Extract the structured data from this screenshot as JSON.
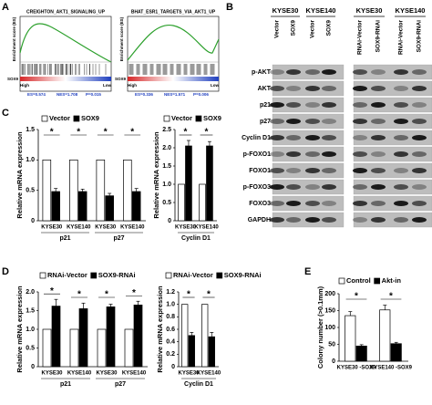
{
  "panel_labels": [
    "A",
    "B",
    "C",
    "D",
    "E"
  ],
  "gsea": [
    {
      "title": "CREIGHTON_AKT1_SIGNALING_UP",
      "ylabel": "Enrichment score (ES)",
      "gene": "SOX9",
      "high": "High",
      "low": "Low",
      "stats": [
        "ES=0.574",
        "NES=1.708",
        "P=0.015"
      ]
    },
    {
      "title": "BHAT_ESR1_TARGETS_VIA_AKT1_UP",
      "ylabel": "Enrichment score (ES)",
      "gene": "SOX9",
      "high": "High",
      "low": "Low",
      "stats": [
        "ES=0.336",
        "NES=1.571",
        "P=0.006"
      ]
    }
  ],
  "blot": {
    "left_groups": [
      {
        "name": "KYSE30",
        "lanes": [
          "Vector",
          "SOX9"
        ]
      },
      {
        "name": "KYSE140",
        "lanes": [
          "Vector",
          "SOX9"
        ]
      }
    ],
    "right_groups": [
      {
        "name": "KYSE30",
        "lanes": [
          "RNAi-Vector",
          "SOX9-RNAi"
        ]
      },
      {
        "name": "KYSE140",
        "lanes": [
          "RNAi-Vector",
          "SOX9-RNAi"
        ]
      }
    ],
    "rows": [
      "p-AKT",
      "AKT",
      "p21",
      "p27",
      "Cyclin D1",
      "p-FOXO1",
      "FOXO1",
      "p-FOXO3",
      "FOXO3",
      "GAPDH"
    ]
  },
  "chart_data": [
    {
      "type": "bar",
      "ylabel": "Relative mRNA expression",
      "ylim": [
        0,
        1.5
      ],
      "yticks": [
        0,
        0.5,
        {
          "value": 1,
          "label": "1.0"
        },
        1.5
      ],
      "categories": [
        "KYSE30",
        "KYSE140",
        "KYSE30",
        "KYSE140"
      ],
      "groups": [
        "p21",
        "p27"
      ],
      "series": [
        {
          "name": "Vector",
          "color": "#ffffff",
          "values": [
            1,
            1,
            1,
            1
          ]
        },
        {
          "name": "SOX9",
          "color": "#000000",
          "values": [
            0.48,
            0.48,
            0.41,
            0.48
          ],
          "errors": [
            0.05,
            0.04,
            0.04,
            0.05
          ]
        }
      ],
      "annotations": [
        "*",
        "*",
        "*",
        "*"
      ]
    },
    {
      "type": "bar",
      "ylabel": "Relative mRNA expression",
      "ylim": [
        0,
        2.5
      ],
      "yticks": [
        0,
        0.5,
        {
          "value": 1,
          "label": "1.0"
        },
        1.5,
        {
          "value": 2,
          "label": "2.0"
        },
        2.5
      ],
      "categories": [
        "KYSE30",
        "KYSE140"
      ],
      "groups": [
        "Cyclin D1"
      ],
      "series": [
        {
          "name": "Vector",
          "color": "#ffffff",
          "values": [
            1,
            1
          ]
        },
        {
          "name": "SOX9",
          "color": "#000000",
          "values": [
            2.05,
            2.05
          ],
          "errors": [
            0.15,
            0.12
          ]
        }
      ],
      "annotations": [
        "*",
        "*"
      ]
    },
    {
      "type": "bar",
      "ylabel": "Relative mRNA expression",
      "ylim": [
        0,
        2
      ],
      "yticks": [
        0,
        0.5,
        {
          "value": 1,
          "label": "1.0"
        },
        1.5,
        {
          "value": 2,
          "label": "2.0"
        }
      ],
      "categories": [
        "KYSE30",
        "KYSE140",
        "KYSE30",
        "KYSE140"
      ],
      "groups": [
        "p21",
        "p27"
      ],
      "series": [
        {
          "name": "RNAi-Vector",
          "color": "#ffffff",
          "values": [
            1,
            1,
            1,
            1
          ]
        },
        {
          "name": "SOX9-RNAi",
          "color": "#000000",
          "values": [
            1.62,
            1.55,
            1.6,
            1.65
          ],
          "errors": [
            0.18,
            0.15,
            0.07,
            0.1
          ]
        }
      ],
      "annotations": [
        "*",
        "*",
        "*",
        "*"
      ]
    },
    {
      "type": "bar",
      "ylabel": "Relative mRNA expression",
      "ylim": [
        0,
        1.2
      ],
      "yticks": [
        0,
        0.2,
        0.4,
        0.6,
        0.8,
        {
          "value": 1,
          "label": "1.0"
        },
        1.2
      ],
      "categories": [
        "KYSE30",
        "KYSE140"
      ],
      "groups": [
        "Cyclin D1"
      ],
      "series": [
        {
          "name": "RNAi-Vector",
          "color": "#ffffff",
          "values": [
            1,
            1
          ]
        },
        {
          "name": "SOX9-RNAi",
          "color": "#000000",
          "values": [
            0.5,
            0.48
          ],
          "errors": [
            0.05,
            0.07
          ]
        }
      ],
      "annotations": [
        "*",
        "*"
      ]
    },
    {
      "type": "bar",
      "ylabel": "Colony number (>0.1mm)",
      "ylim": [
        0,
        200
      ],
      "yticks": [
        0,
        50,
        100,
        150,
        200
      ],
      "categories": [
        "KYSE30 -SOX9",
        "KYSE140 -SOX9"
      ],
      "series": [
        {
          "name": "Control",
          "color": "#ffffff",
          "values": [
            135,
            152
          ],
          "errors": [
            12,
            14
          ]
        },
        {
          "name": "Akt-in",
          "color": "#000000",
          "values": [
            45,
            52
          ],
          "errors": [
            4,
            4
          ]
        }
      ],
      "annotations": [
        "*",
        "*"
      ]
    }
  ]
}
